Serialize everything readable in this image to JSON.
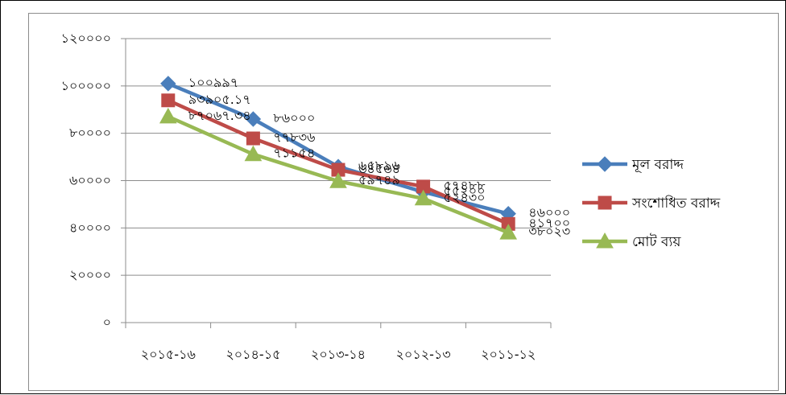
{
  "chart_data": {
    "type": "line",
    "title": "",
    "xlabel": "",
    "ylabel": "",
    "ylim": [
      0,
      120000
    ],
    "y_ticks": [
      "০",
      "২০০০০",
      "৪০০০০",
      "৬০০০০",
      "৮০০০০",
      "১০০০০০",
      "১২০০০০"
    ],
    "categories": [
      "২০১৫-১৬",
      "২০১৪-১৫",
      "২০১৩-১৪",
      "২০১২-১৩",
      "২০১১-১২"
    ],
    "grid": true,
    "legend_position": "right",
    "series": [
      {
        "name": "মূল বরাদ্দ",
        "color": "#4a7ebb",
        "marker": "diamond",
        "values": [
          100997,
          86000,
          65896,
          55200,
          46000
        ],
        "labels": [
          "১০০৯৯৭",
          "৮৬০০০",
          "৬৫৮৯৬",
          "৫৫২০০",
          "৪৬০০০"
        ]
      },
      {
        "name": "সংশোধিত বরাদ্দ",
        "color": "#be4b48",
        "marker": "square",
        "values": [
          93905.17,
          77836,
          64564,
          57488,
          41700
        ],
        "labels": [
          "৯৩৯০৫.১৭",
          "৭৭৮৩৬",
          "৬৪৫৬৪",
          "৫৭৪৮৮",
          "৪১৭০০"
        ]
      },
      {
        "name": "মোট ব্যয়",
        "color": "#98b954",
        "marker": "triangle",
        "values": [
          87067.34,
          71154,
          59749,
          52430,
          38023
        ],
        "labels": [
          "৮৭০৬৭.৩৪",
          "৭১১৫৪",
          "৫৯৭৪৯",
          "৫২৪৩০",
          "৩৮০২৩"
        ]
      }
    ]
  }
}
